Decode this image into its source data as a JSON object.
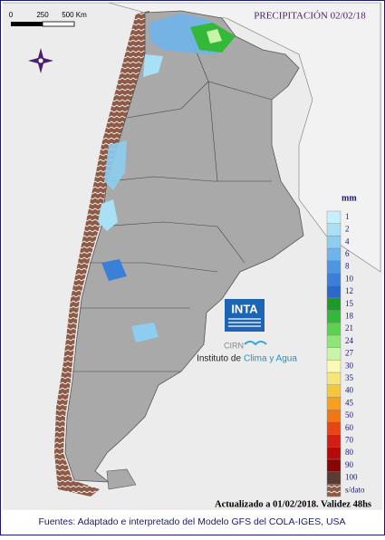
{
  "header": {
    "title": "PRECIPITACIÓN 02/02/18"
  },
  "scale_bar": {
    "labels": [
      "0",
      "250",
      "500 Km"
    ]
  },
  "legend": {
    "unit": "mm",
    "items": [
      {
        "label": "1",
        "color": "#c8f0fa"
      },
      {
        "label": "2",
        "color": "#a8e0f5"
      },
      {
        "label": "4",
        "color": "#8ccdf0"
      },
      {
        "label": "6",
        "color": "#6eb4ea"
      },
      {
        "label": "8",
        "color": "#4f96e0"
      },
      {
        "label": "10",
        "color": "#3a7fd8"
      },
      {
        "label": "12",
        "color": "#2a68cc"
      },
      {
        "label": "15",
        "color": "#1e9a2a"
      },
      {
        "label": "18",
        "color": "#33b83a"
      },
      {
        "label": "21",
        "color": "#5bd24f"
      },
      {
        "label": "24",
        "color": "#8ee67a"
      },
      {
        "label": "27",
        "color": "#c8f5a8"
      },
      {
        "label": "30",
        "color": "#fafab4"
      },
      {
        "label": "35",
        "color": "#f5e67a"
      },
      {
        "label": "40",
        "color": "#f5c83c"
      },
      {
        "label": "45",
        "color": "#f5a01e"
      },
      {
        "label": "50",
        "color": "#f07814"
      },
      {
        "label": "60",
        "color": "#e64614"
      },
      {
        "label": "70",
        "color": "#d21e14"
      },
      {
        "label": "80",
        "color": "#b40a0a"
      },
      {
        "label": "90",
        "color": "#8c0505"
      },
      {
        "label": "100",
        "color": "#5a3c32"
      },
      {
        "label": "s/dato",
        "color": "#8c5a46"
      }
    ]
  },
  "logo": {
    "brand": "INTA",
    "center": "CIRN",
    "institute_prefix": "Instituto de",
    "institute_name": "Clima y Agua"
  },
  "footer": {
    "updated": "Actualizado a 01/02/2018. Validez 48hs",
    "sources": "Fuentes: Adaptado e interpretado del Modelo GFS del COLA-IGES, USA"
  }
}
